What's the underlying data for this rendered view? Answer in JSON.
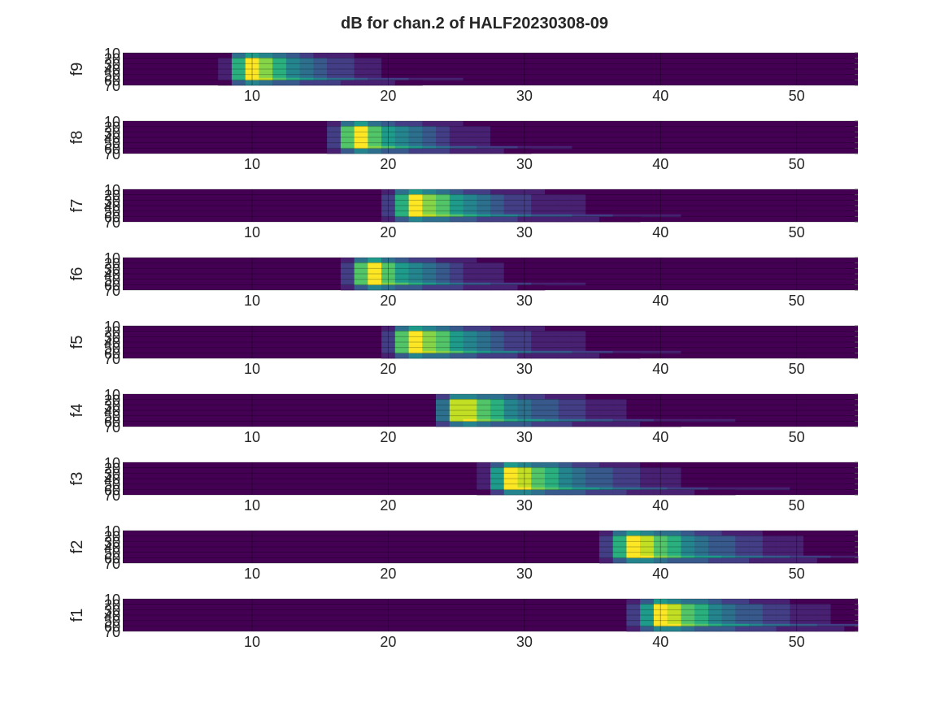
{
  "figure": {
    "title": "dB for chan.2 of HALF20230308-09"
  },
  "colors": {
    "background": "#ffffff",
    "axis_text": "#262626",
    "grid": "#000000",
    "colormap": [
      "#440154",
      "#482173",
      "#433e85",
      "#38598c",
      "#2d708e",
      "#25858e",
      "#1e9b8a",
      "#2ab07f",
      "#52c569",
      "#86d549",
      "#c2df23",
      "#fde725"
    ]
  },
  "chart_data": [
    {
      "type": "heatmap",
      "ylabel": "f9",
      "peak": 10,
      "sigma": 1.0,
      "tail": 4,
      "xticks": [
        10,
        20,
        30,
        40,
        50
      ],
      "yticks": [
        10,
        20,
        30,
        40,
        50,
        60,
        70
      ],
      "xlim": [
        0.5,
        54.5
      ],
      "ylim": [
        70,
        10
      ],
      "colormap": "viridis"
    },
    {
      "type": "heatmap",
      "ylabel": "f8",
      "peak": 17.8,
      "sigma": 1.0,
      "tail": 4,
      "xticks": [
        10,
        20,
        30,
        40,
        50
      ],
      "yticks": [
        10,
        20,
        30,
        40,
        50,
        60,
        70
      ],
      "xlim": [
        0.5,
        54.5
      ],
      "ylim": [
        70,
        10
      ],
      "colormap": "viridis"
    },
    {
      "type": "heatmap",
      "ylabel": "f7",
      "peak": 22,
      "sigma": 1.1,
      "tail": 5,
      "xticks": [
        10,
        20,
        30,
        40,
        50
      ],
      "yticks": [
        10,
        20,
        30,
        40,
        50,
        60,
        70
      ],
      "xlim": [
        0.5,
        54.5
      ],
      "ylim": [
        70,
        10
      ],
      "colormap": "viridis"
    },
    {
      "type": "heatmap",
      "ylabel": "f6",
      "peak": 18.8,
      "sigma": 1.0,
      "tail": 4,
      "xticks": [
        10,
        20,
        30,
        40,
        50
      ],
      "yticks": [
        10,
        20,
        30,
        40,
        50,
        60,
        70
      ],
      "xlim": [
        0.5,
        54.5
      ],
      "ylim": [
        70,
        10
      ],
      "colormap": "viridis"
    },
    {
      "type": "heatmap",
      "ylabel": "f5",
      "peak": 22,
      "sigma": 1.2,
      "tail": 5,
      "xticks": [
        10,
        20,
        30,
        40,
        50
      ],
      "yticks": [
        10,
        20,
        30,
        40,
        50,
        60,
        70
      ],
      "xlim": [
        0.5,
        54.5
      ],
      "ylim": [
        70,
        10
      ],
      "colormap": "viridis"
    },
    {
      "type": "heatmap",
      "ylabel": "f4",
      "peak": 25.5,
      "sigma": 1.1,
      "tail": 5,
      "xticks": [
        10,
        20,
        30,
        40,
        50
      ],
      "yticks": [
        10,
        20,
        30,
        40,
        50,
        60,
        70
      ],
      "xlim": [
        0.5,
        54.5
      ],
      "ylim": [
        70,
        10
      ],
      "colormap": "viridis"
    },
    {
      "type": "heatmap",
      "ylabel": "f3",
      "peak": 29.5,
      "sigma": 1.3,
      "tail": 5,
      "xticks": [
        10,
        20,
        30,
        40,
        50
      ],
      "yticks": [
        10,
        20,
        30,
        40,
        50,
        60,
        70
      ],
      "xlim": [
        0.5,
        54.5
      ],
      "ylim": [
        70,
        10
      ],
      "colormap": "viridis"
    },
    {
      "type": "heatmap",
      "ylabel": "f2",
      "peak": 38.5,
      "sigma": 1.5,
      "tail": 5,
      "xticks": [
        10,
        20,
        30,
        40,
        50
      ],
      "yticks": [
        10,
        20,
        30,
        40,
        50,
        60,
        70
      ],
      "xlim": [
        0.5,
        54.5
      ],
      "ylim": [
        70,
        10
      ],
      "colormap": "viridis"
    },
    {
      "type": "heatmap",
      "ylabel": "f1",
      "peak": 40.5,
      "sigma": 1.4,
      "tail": 5,
      "xticks": [
        10,
        20,
        30,
        40,
        50
      ],
      "yticks": [
        10,
        20,
        30,
        40,
        50,
        60,
        70
      ],
      "xlim": [
        0.5,
        54.5
      ],
      "ylim": [
        70,
        10
      ],
      "colormap": "viridis"
    }
  ]
}
